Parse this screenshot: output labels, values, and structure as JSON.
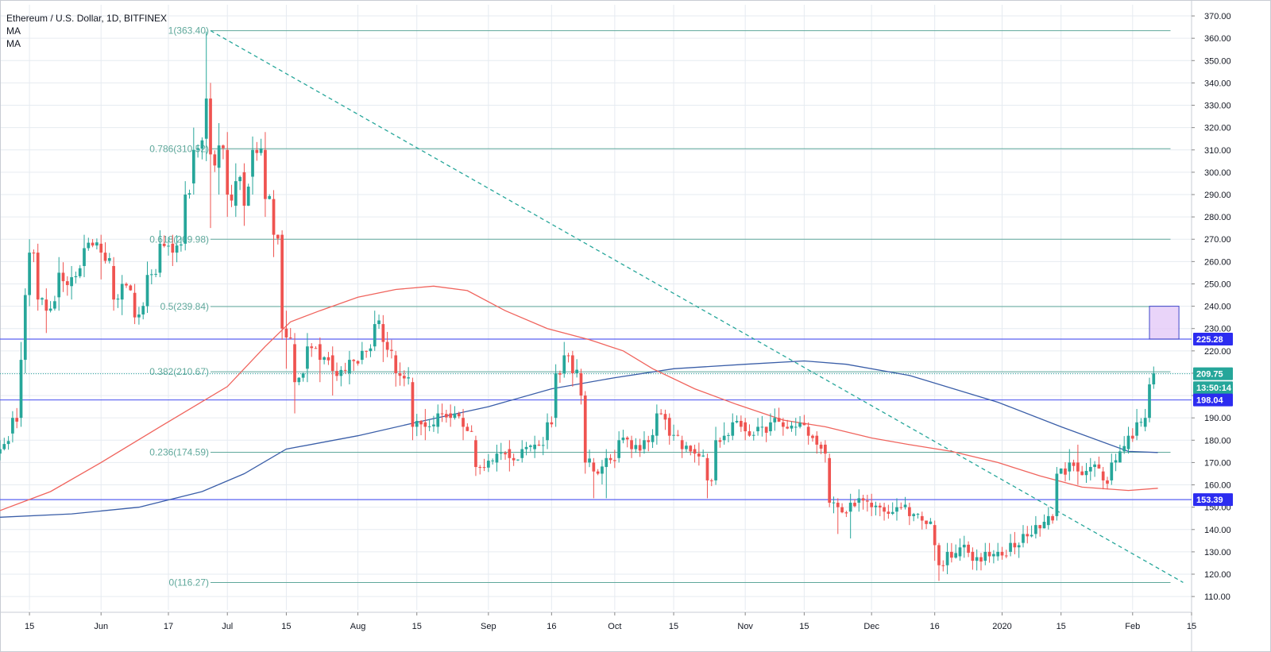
{
  "legend": {
    "title": "Ethereum / U.S. Dollar, 1D, BITFINEX",
    "indicators": [
      "MA",
      "MA"
    ]
  },
  "colors": {
    "up": "#26a69a",
    "down": "#ef5350",
    "grid": "#e6ebf1",
    "fib": "#5fa89b",
    "hline": "#5a62f2",
    "ma_short": "#f0645d",
    "ma_long": "#3a5ea8",
    "trend": "#26a69a",
    "zone_fill": "#e3c9f7",
    "zone_border": "#3f46c9",
    "price_tag": "#26a69a",
    "level_tag": "#2c2cf0"
  },
  "chart_data": {
    "type": "candlestick",
    "y_range": [
      104,
      375
    ],
    "y_ticks": [
      110,
      120,
      130,
      140,
      150,
      160,
      170,
      180,
      190,
      200,
      210,
      220,
      230,
      240,
      250,
      260,
      270,
      280,
      290,
      300,
      310,
      320,
      330,
      340,
      350,
      360,
      370
    ],
    "x_range": [
      "2019-05-08",
      "2020-02-15"
    ],
    "x_ticks": [
      {
        "date": "2019-05-15",
        "label": "15"
      },
      {
        "date": "2019-06-01",
        "label": "Jun"
      },
      {
        "date": "2019-06-17",
        "label": "17"
      },
      {
        "date": "2019-07-01",
        "label": "Jul"
      },
      {
        "date": "2019-07-15",
        "label": "15"
      },
      {
        "date": "2019-08-01",
        "label": "Aug"
      },
      {
        "date": "2019-08-15",
        "label": "15"
      },
      {
        "date": "2019-09-01",
        "label": "Sep"
      },
      {
        "date": "2019-09-16",
        "label": "16"
      },
      {
        "date": "2019-10-01",
        "label": "Oct"
      },
      {
        "date": "2019-10-15",
        "label": "15"
      },
      {
        "date": "2019-11-01",
        "label": "Nov"
      },
      {
        "date": "2019-11-15",
        "label": "15"
      },
      {
        "date": "2019-12-01",
        "label": "Dec"
      },
      {
        "date": "2019-12-16",
        "label": "16"
      },
      {
        "date": "2020-01-01",
        "label": "2020"
      },
      {
        "date": "2020-01-15",
        "label": "15"
      },
      {
        "date": "2020-02-01",
        "label": "Feb"
      },
      {
        "date": "2020-02-15",
        "label": "15"
      }
    ],
    "fib_levels": [
      {
        "label": "1(363.40)",
        "value": 363.4
      },
      {
        "label": "0.786(310.52)",
        "value": 310.52
      },
      {
        "label": "0.618(269.98)",
        "value": 269.98
      },
      {
        "label": "0.5(239.84)",
        "value": 239.84
      },
      {
        "label": "0.382(210.67)",
        "value": 210.67
      },
      {
        "label": "0.236(174.59)",
        "value": 174.59
      },
      {
        "label": "0(116.27)",
        "value": 116.27
      }
    ],
    "fib_range": {
      "start": "2019-06-27",
      "end": "2020-02-10"
    },
    "horizontal_lines": [
      225.28,
      198.04,
      153.39
    ],
    "price_tags": [
      {
        "label": "225.28",
        "value": 225.28,
        "kind": "level"
      },
      {
        "label": "209.75",
        "value": 209.75,
        "kind": "price"
      },
      {
        "label": "13:50:14",
        "value": 203.5,
        "kind": "price"
      },
      {
        "label": "198.04",
        "value": 198.04,
        "kind": "level"
      },
      {
        "label": "153.39",
        "value": 153.39,
        "kind": "level"
      }
    ],
    "last_price": 209.75,
    "zone": {
      "start": "2020-02-05",
      "end": "2020-02-12",
      "top": 240,
      "bottom": 225.3
    },
    "trendline": [
      {
        "date": "2019-06-27",
        "value": 363.4
      },
      {
        "date": "2020-02-13",
        "value": 116.3
      }
    ],
    "ma_short": [
      [
        "2019-05-08",
        148.5
      ],
      [
        "2019-05-20",
        157
      ],
      [
        "2019-06-01",
        170
      ],
      [
        "2019-06-15",
        186
      ],
      [
        "2019-07-01",
        204
      ],
      [
        "2019-07-10",
        222
      ],
      [
        "2019-07-16",
        233
      ],
      [
        "2019-07-23",
        238
      ],
      [
        "2019-08-01",
        244
      ],
      [
        "2019-08-10",
        247.5
      ],
      [
        "2019-08-19",
        249
      ],
      [
        "2019-08-27",
        247
      ],
      [
        "2019-09-05",
        238
      ],
      [
        "2019-09-15",
        230
      ],
      [
        "2019-09-25",
        225
      ],
      [
        "2019-10-03",
        220
      ],
      [
        "2019-10-10",
        212
      ],
      [
        "2019-10-20",
        203
      ],
      [
        "2019-10-30",
        196
      ],
      [
        "2019-11-10",
        189
      ],
      [
        "2019-11-20",
        186
      ],
      [
        "2019-12-01",
        181
      ],
      [
        "2019-12-10",
        178
      ],
      [
        "2019-12-20",
        175
      ],
      [
        "2019-12-31",
        170
      ],
      [
        "2020-01-10",
        164
      ],
      [
        "2020-01-20",
        159
      ],
      [
        "2020-01-31",
        157.5
      ],
      [
        "2020-02-07",
        158.5
      ]
    ],
    "ma_long": [
      [
        "2019-05-08",
        145.5
      ],
      [
        "2019-05-25",
        147
      ],
      [
        "2019-06-10",
        150
      ],
      [
        "2019-06-25",
        157
      ],
      [
        "2019-07-05",
        165
      ],
      [
        "2019-07-15",
        176
      ],
      [
        "2019-08-01",
        182
      ],
      [
        "2019-08-15",
        188
      ],
      [
        "2019-09-01",
        195
      ],
      [
        "2019-09-16",
        203
      ],
      [
        "2019-10-01",
        208
      ],
      [
        "2019-10-15",
        212
      ],
      [
        "2019-11-01",
        214
      ],
      [
        "2019-11-15",
        215.5
      ],
      [
        "2019-11-25",
        214
      ],
      [
        "2019-12-10",
        209
      ],
      [
        "2019-12-31",
        197
      ],
      [
        "2020-01-15",
        186
      ],
      [
        "2020-01-31",
        175
      ],
      [
        "2020-02-07",
        174.5
      ]
    ],
    "candles_anchor": [
      [
        "2019-05-08",
        176,
        174,
        180,
        171
      ],
      [
        "2019-05-11",
        190,
        183,
        193,
        179
      ],
      [
        "2019-05-13",
        216,
        190,
        224,
        186
      ],
      [
        "2019-05-14",
        245,
        216,
        248,
        210
      ],
      [
        "2019-05-15",
        264,
        245,
        270,
        240
      ],
      [
        "2019-05-17",
        243,
        264,
        268,
        238
      ],
      [
        "2019-05-19",
        238,
        243,
        248,
        228
      ],
      [
        "2019-05-22",
        255,
        244,
        262,
        238
      ],
      [
        "2019-05-25",
        253,
        249,
        258,
        243
      ],
      [
        "2019-05-28",
        266,
        258,
        272,
        253
      ],
      [
        "2019-06-01",
        264,
        268,
        272,
        252
      ],
      [
        "2019-06-04",
        243,
        258,
        262,
        238
      ],
      [
        "2019-06-06",
        250,
        243,
        254,
        236
      ],
      [
        "2019-06-09",
        235,
        246,
        250,
        232
      ],
      [
        "2019-06-12",
        254,
        240,
        260,
        237
      ],
      [
        "2019-06-15",
        268,
        255,
        274,
        253
      ],
      [
        "2019-06-18",
        264,
        268,
        272,
        258
      ],
      [
        "2019-06-21",
        290,
        268,
        296,
        265
      ],
      [
        "2019-06-23",
        310,
        295,
        320,
        290
      ],
      [
        "2019-06-26",
        333,
        315,
        363,
        305
      ],
      [
        "2019-06-27",
        308,
        333,
        340,
        275
      ],
      [
        "2019-06-29",
        312,
        302,
        322,
        290
      ],
      [
        "2019-07-01",
        290,
        310,
        318,
        280
      ],
      [
        "2019-07-03",
        296,
        285,
        304,
        280
      ],
      [
        "2019-07-05",
        285,
        300,
        304,
        276
      ],
      [
        "2019-07-07",
        310,
        298,
        316,
        290
      ],
      [
        "2019-07-10",
        288,
        310,
        318,
        280
      ],
      [
        "2019-07-12",
        272,
        288,
        292,
        262
      ],
      [
        "2019-07-14",
        230,
        272,
        274,
        225
      ],
      [
        "2019-07-15",
        226,
        230,
        238,
        212
      ],
      [
        "2019-07-17",
        206,
        223,
        228,
        192
      ],
      [
        "2019-07-20",
        222,
        212,
        228,
        206
      ],
      [
        "2019-07-23",
        216,
        223,
        226,
        206
      ],
      [
        "2019-07-26",
        211,
        218,
        222,
        200
      ],
      [
        "2019-07-30",
        216,
        210,
        220,
        205
      ],
      [
        "2019-08-02",
        220,
        216,
        224,
        214
      ],
      [
        "2019-08-05",
        232,
        222,
        238,
        220
      ],
      [
        "2019-08-07",
        224,
        232,
        236,
        215
      ],
      [
        "2019-08-10",
        210,
        218,
        220,
        204
      ],
      [
        "2019-08-14",
        186,
        206,
        208,
        180
      ],
      [
        "2019-08-17",
        186,
        188,
        194,
        180
      ],
      [
        "2019-08-20",
        192,
        186,
        196,
        183
      ],
      [
        "2019-08-23",
        190,
        192,
        196,
        186
      ],
      [
        "2019-08-26",
        186,
        190,
        194,
        180
      ],
      [
        "2019-08-29",
        168,
        180,
        182,
        164
      ],
      [
        "2019-09-03",
        174,
        170,
        178,
        166
      ],
      [
        "2019-09-06",
        172,
        176,
        180,
        166
      ],
      [
        "2019-09-09",
        176,
        172,
        180,
        170
      ],
      [
        "2019-09-12",
        178,
        176,
        182,
        172
      ],
      [
        "2019-09-15",
        188,
        180,
        192,
        176
      ],
      [
        "2019-09-17",
        210,
        190,
        214,
        186
      ],
      [
        "2019-09-19",
        218,
        210,
        224,
        208
      ],
      [
        "2019-09-21",
        210,
        218,
        220,
        204
      ],
      [
        "2019-09-23",
        200,
        210,
        212,
        196
      ],
      [
        "2019-09-24",
        170,
        200,
        202,
        165
      ],
      [
        "2019-09-26",
        166,
        170,
        172,
        154
      ],
      [
        "2019-09-29",
        172,
        168,
        176,
        154
      ],
      [
        "2019-10-02",
        180,
        172,
        184,
        170
      ],
      [
        "2019-10-05",
        176,
        180,
        182,
        172
      ],
      [
        "2019-10-08",
        180,
        176,
        184,
        174
      ],
      [
        "2019-10-11",
        192,
        182,
        196,
        178
      ],
      [
        "2019-10-14",
        182,
        190,
        192,
        178
      ],
      [
        "2019-10-17",
        176,
        180,
        182,
        172
      ],
      [
        "2019-10-20",
        174,
        176,
        178,
        170
      ],
      [
        "2019-10-23",
        162,
        172,
        174,
        154
      ],
      [
        "2019-10-25",
        180,
        162,
        186,
        160
      ],
      [
        "2019-10-27",
        182,
        180,
        188,
        178
      ],
      [
        "2019-10-29",
        188,
        182,
        192,
        180
      ],
      [
        "2019-11-01",
        184,
        188,
        190,
        180
      ],
      [
        "2019-11-04",
        186,
        184,
        190,
        182
      ],
      [
        "2019-11-07",
        188,
        184,
        192,
        182
      ],
      [
        "2019-11-10",
        186,
        188,
        190,
        182
      ],
      [
        "2019-11-13",
        186,
        186,
        190,
        182
      ],
      [
        "2019-11-16",
        182,
        186,
        188,
        178
      ],
      [
        "2019-11-18",
        178,
        182,
        184,
        174
      ],
      [
        "2019-11-20",
        174,
        178,
        180,
        170
      ],
      [
        "2019-11-21",
        152,
        172,
        174,
        150
      ],
      [
        "2019-11-23",
        150,
        152,
        154,
        138
      ],
      [
        "2019-11-26",
        152,
        148,
        156,
        136
      ],
      [
        "2019-11-28",
        154,
        152,
        158,
        148
      ],
      [
        "2019-12-01",
        150,
        152,
        156,
        146
      ],
      [
        "2019-12-04",
        148,
        150,
        152,
        144
      ],
      [
        "2019-12-07",
        150,
        148,
        154,
        144
      ],
      [
        "2019-12-10",
        146,
        150,
        152,
        142
      ],
      [
        "2019-12-13",
        144,
        146,
        148,
        140
      ],
      [
        "2019-12-16",
        133,
        142,
        144,
        126
      ],
      [
        "2019-12-17",
        124,
        133,
        134,
        117
      ],
      [
        "2019-12-19",
        130,
        124,
        134,
        120
      ],
      [
        "2019-12-22",
        132,
        128,
        136,
        126
      ],
      [
        "2019-12-25",
        126,
        130,
        132,
        122
      ],
      [
        "2019-12-28",
        130,
        126,
        134,
        124
      ],
      [
        "2019-12-31",
        130,
        128,
        134,
        126
      ],
      [
        "2020-01-03",
        134,
        130,
        138,
        128
      ],
      [
        "2020-01-06",
        138,
        134,
        142,
        132
      ],
      [
        "2020-01-09",
        142,
        138,
        146,
        136
      ],
      [
        "2020-01-12",
        146,
        142,
        150,
        140
      ],
      [
        "2020-01-14",
        165,
        146,
        168,
        144
      ],
      [
        "2020-01-17",
        170,
        166,
        176,
        162
      ],
      [
        "2020-01-19",
        166,
        170,
        178,
        160
      ],
      [
        "2020-01-22",
        168,
        166,
        172,
        162
      ],
      [
        "2020-01-25",
        162,
        166,
        168,
        158
      ],
      [
        "2020-01-27",
        170,
        162,
        174,
        160
      ],
      [
        "2020-01-29",
        175,
        170,
        178,
        172
      ],
      [
        "2020-01-31",
        182,
        176,
        186,
        174
      ],
      [
        "2020-02-02",
        188,
        182,
        194,
        180
      ],
      [
        "2020-02-04",
        190,
        186,
        194,
        184
      ],
      [
        "2020-02-05",
        205,
        190,
        208,
        188
      ],
      [
        "2020-02-06",
        210,
        205,
        213,
        203
      ]
    ]
  }
}
